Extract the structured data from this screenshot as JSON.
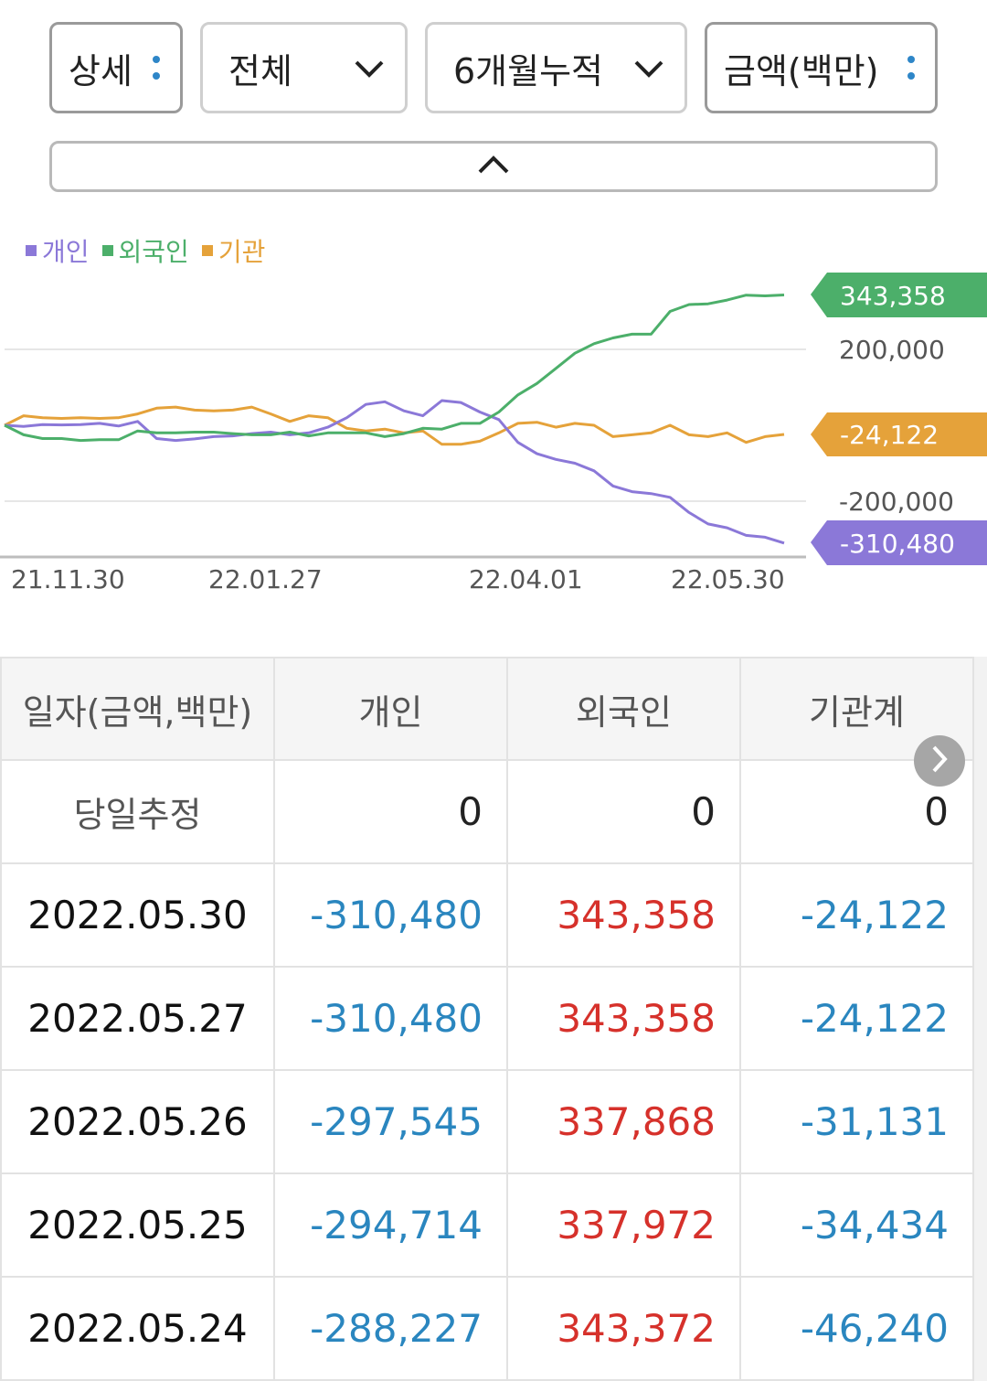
{
  "filters": [
    {
      "label": "상세",
      "icon": "more-vertical-icon"
    },
    {
      "label": "전체",
      "icon": "chevron-down-icon"
    },
    {
      "label": "6개월누적",
      "icon": "chevron-down-icon"
    },
    {
      "label": "금액(백만)",
      "icon": "more-vertical-icon"
    }
  ],
  "colors": {
    "individual": "#8b78d8",
    "foreign": "#4caf6a",
    "institution": "#e5a23a",
    "negative": "#2a86bf",
    "positive": "#d6312b"
  },
  "chart_data": {
    "type": "line",
    "legend": [
      "개인",
      "외국인",
      "기관"
    ],
    "x_ticks": [
      "21.11.30",
      "22.01.27",
      "22.04.01",
      "22.05.30"
    ],
    "y_ticks": [
      "200,000",
      "-200,000"
    ],
    "ylim": [
      -350000,
      360000
    ],
    "end_labels": [
      "343,358",
      "-24,122",
      "-310,480"
    ],
    "series": [
      {
        "name": "개인",
        "values": [
          0,
          -3000,
          2000,
          1000,
          2000,
          5000,
          -2000,
          10000,
          -35000,
          -40000,
          -36000,
          -30000,
          -28000,
          -22000,
          -18000,
          -25000,
          -20000,
          -5000,
          20000,
          55000,
          62000,
          38000,
          25000,
          65000,
          60000,
          35000,
          15000,
          -45000,
          -75000,
          -90000,
          -100000,
          -120000,
          -160000,
          -175000,
          -180000,
          -190000,
          -230000,
          -260000,
          -270000,
          -290000,
          -295000,
          -310480
        ]
      },
      {
        "name": "외국인",
        "values": [
          0,
          -25000,
          -35000,
          -35000,
          -40000,
          -38000,
          -38000,
          -15000,
          -20000,
          -20000,
          -18000,
          -18000,
          -22000,
          -25000,
          -25000,
          -18000,
          -28000,
          -20000,
          -20000,
          -20000,
          -30000,
          -22000,
          -8000,
          -10000,
          5000,
          5000,
          35000,
          80000,
          110000,
          150000,
          190000,
          215000,
          230000,
          240000,
          240000,
          300000,
          318000,
          320000,
          330000,
          343000,
          341000,
          343358
        ]
      },
      {
        "name": "기관",
        "values": [
          0,
          25000,
          20000,
          18000,
          20000,
          18000,
          20000,
          30000,
          45000,
          48000,
          40000,
          38000,
          40000,
          48000,
          30000,
          10000,
          25000,
          20000,
          -8000,
          -15000,
          -10000,
          -20000,
          -15000,
          -50000,
          -50000,
          -42000,
          -20000,
          5000,
          8000,
          -5000,
          5000,
          0,
          -30000,
          -25000,
          -20000,
          0,
          -25000,
          -30000,
          -20000,
          -45000,
          -30000,
          -24122
        ]
      }
    ]
  },
  "table": {
    "headers": [
      "일자(금액,백만)",
      "개인",
      "외국인",
      "기관계"
    ],
    "today": {
      "label": "당일추정",
      "individual": "0",
      "foreign": "0",
      "institution": "0"
    },
    "rows": [
      {
        "date": "2022.05.30",
        "individual": "-310,480",
        "foreign": "343,358",
        "institution": "-24,122"
      },
      {
        "date": "2022.05.27",
        "individual": "-310,480",
        "foreign": "343,358",
        "institution": "-24,122"
      },
      {
        "date": "2022.05.26",
        "individual": "-297,545",
        "foreign": "337,868",
        "institution": "-31,131"
      },
      {
        "date": "2022.05.25",
        "individual": "-294,714",
        "foreign": "337,972",
        "institution": "-34,434"
      },
      {
        "date": "2022.05.24",
        "individual": "-288,227",
        "foreign": "343,372",
        "institution": "-46,240"
      }
    ]
  }
}
